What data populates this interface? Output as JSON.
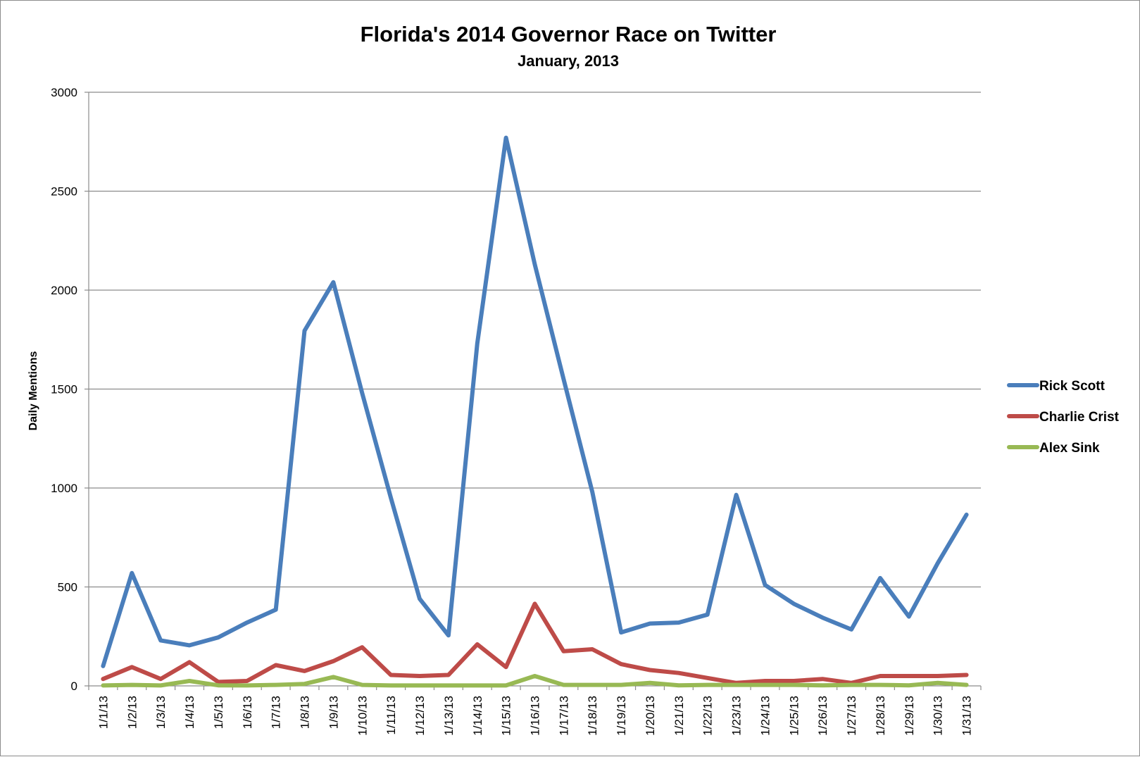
{
  "chart_data": {
    "type": "line",
    "title": "Florida's 2014 Governor Race on Twitter",
    "subtitle": "January, 2013",
    "xlabel": "",
    "ylabel": "Daily Mentions",
    "ylim": [
      0,
      3000
    ],
    "yticks": [
      0,
      500,
      1000,
      1500,
      2000,
      2500,
      3000
    ],
    "grid": true,
    "legend_position": "right",
    "x": [
      "1/1/13",
      "1/2/13",
      "1/3/13",
      "1/4/13",
      "1/5/13",
      "1/6/13",
      "1/7/13",
      "1/8/13",
      "1/9/13",
      "1/10/13",
      "1/11/13",
      "1/12/13",
      "1/13/13",
      "1/14/13",
      "1/15/13",
      "1/16/13",
      "1/17/13",
      "1/18/13",
      "1/19/13",
      "1/20/13",
      "1/21/13",
      "1/22/13",
      "1/23/13",
      "1/24/13",
      "1/25/13",
      "1/26/13",
      "1/27/13",
      "1/28/13",
      "1/29/13",
      "1/30/13",
      "1/31/13"
    ],
    "series": [
      {
        "name": "Rick Scott",
        "color": "#4a7ebb",
        "values": [
          100,
          570,
          230,
          205,
          245,
          320,
          385,
          1795,
          2040,
          1480,
          950,
          440,
          255,
          1730,
          2770,
          2130,
          1550,
          980,
          270,
          315,
          320,
          360,
          965,
          510,
          415,
          345,
          285,
          545,
          350,
          620,
          865
        ]
      },
      {
        "name": "Charlie Crist",
        "color": "#be4b48",
        "values": [
          35,
          95,
          35,
          120,
          20,
          25,
          105,
          75,
          125,
          195,
          55,
          50,
          55,
          210,
          95,
          415,
          175,
          185,
          110,
          80,
          65,
          40,
          15,
          25,
          25,
          35,
          15,
          50,
          50,
          50,
          55
        ]
      },
      {
        "name": "Alex Sink",
        "color": "#98b954",
        "values": [
          2,
          5,
          2,
          25,
          3,
          2,
          5,
          10,
          45,
          5,
          2,
          2,
          2,
          2,
          2,
          50,
          5,
          5,
          5,
          15,
          3,
          5,
          5,
          5,
          5,
          3,
          5,
          5,
          3,
          15,
          5
        ]
      }
    ]
  }
}
